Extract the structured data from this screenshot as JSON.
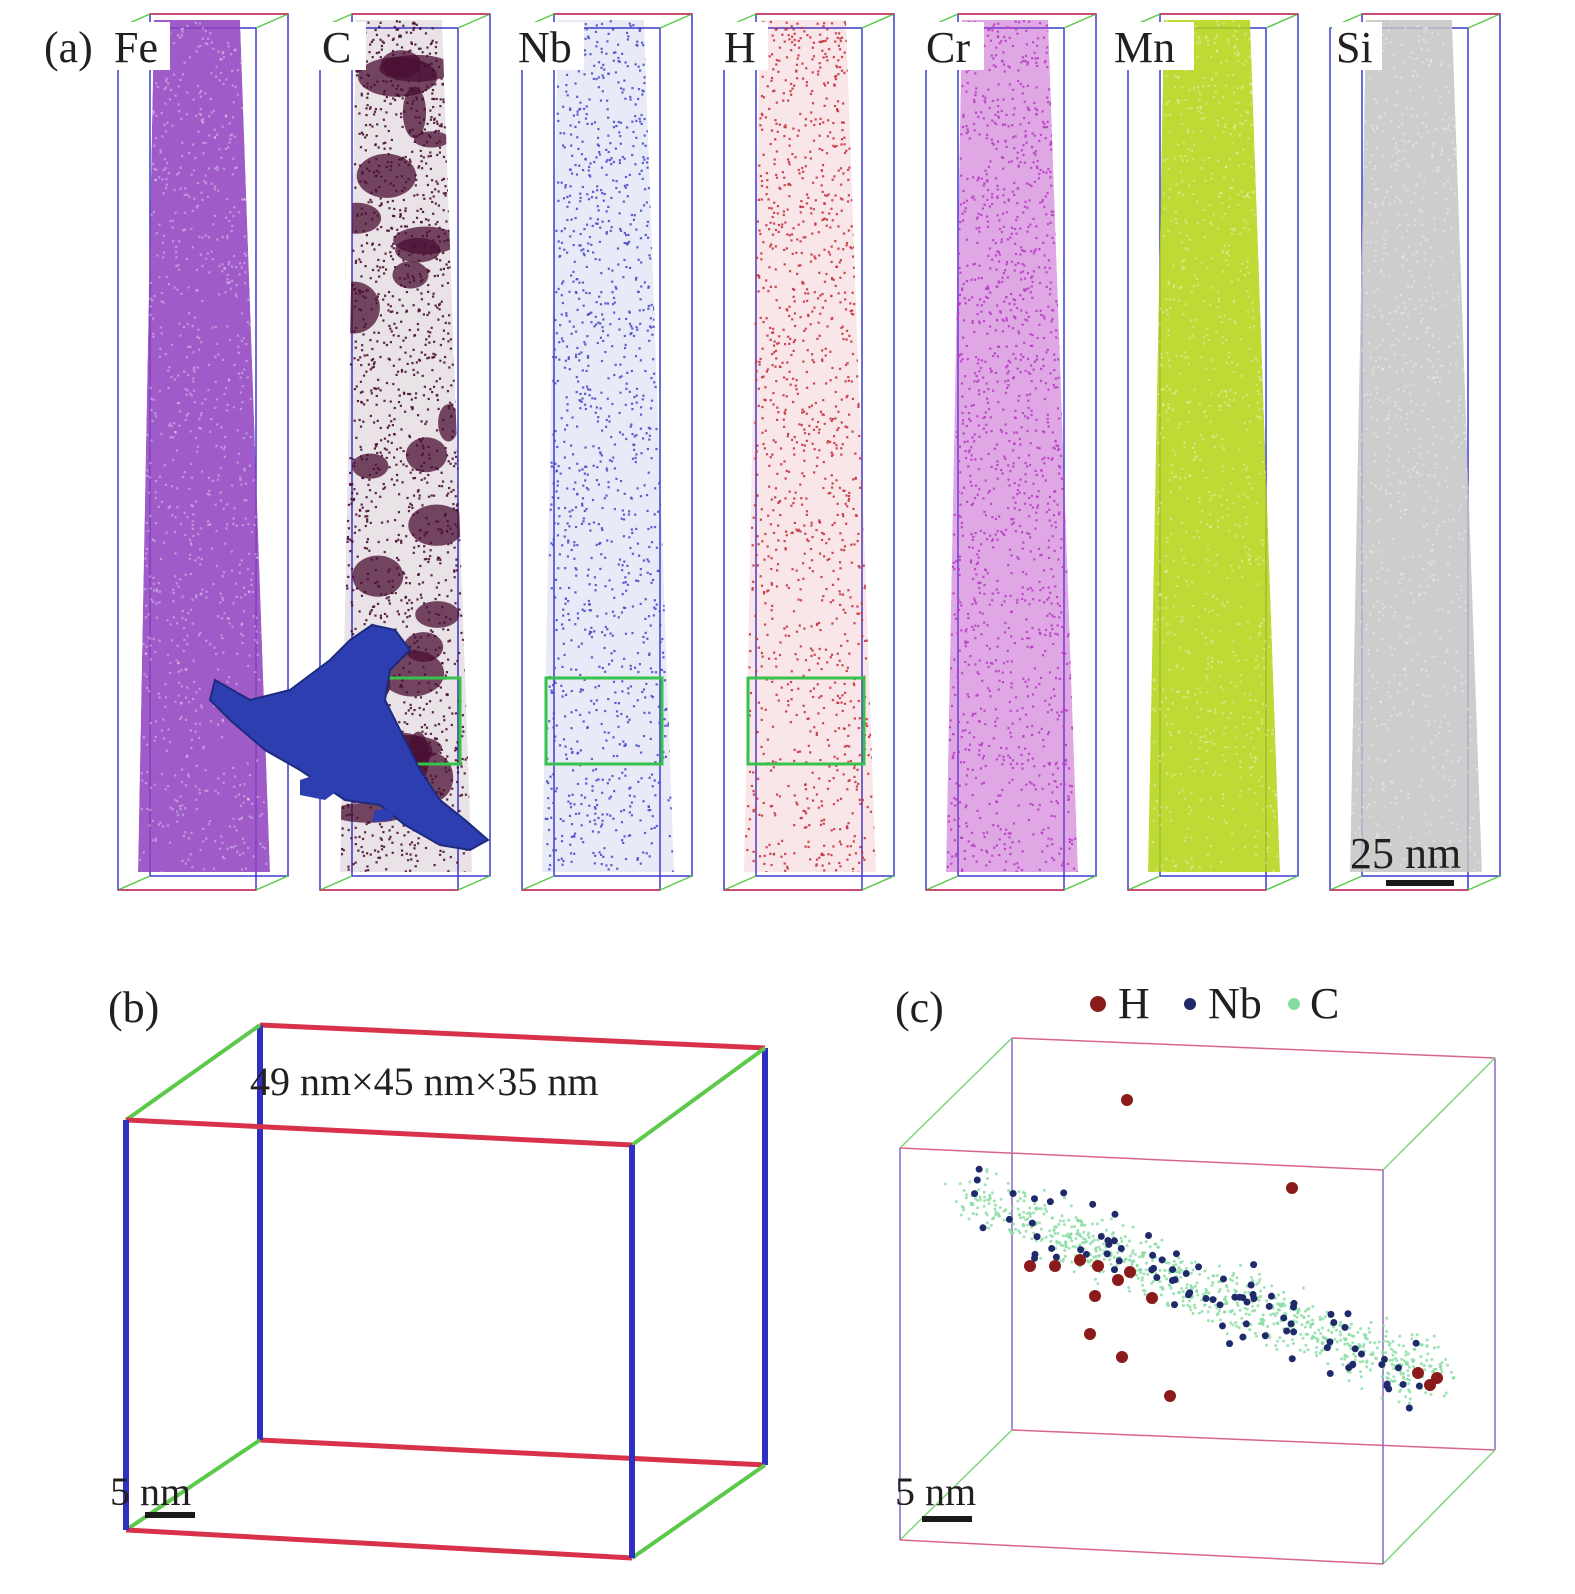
{
  "figure": {
    "panel_a": {
      "label": "(a)",
      "scale_bar": "25 nm",
      "columns": [
        {
          "element": "Fe",
          "color": "#8e3fbe",
          "pattern": "dense",
          "highlight": false
        },
        {
          "element": "C",
          "color": "#4a0f33",
          "pattern": "clusters",
          "highlight": true
        },
        {
          "element": "Nb",
          "color": "#4b4fc7",
          "pattern": "sparse",
          "highlight": true
        },
        {
          "element": "H",
          "color": "#c8333f",
          "pattern": "sparse",
          "highlight": true
        },
        {
          "element": "Cr",
          "color": "#b93ec5",
          "pattern": "medium",
          "highlight": false
        },
        {
          "element": "Mn",
          "color": "#b3d312",
          "pattern": "dense",
          "highlight": false
        },
        {
          "element": "Si",
          "color": "#c4c4c4",
          "pattern": "dense",
          "highlight": false
        }
      ],
      "highlight_box_color": "#37c34b"
    },
    "panel_b": {
      "label": "(b)",
      "dimensions": "49 nm×45 nm×35 nm",
      "scale_bar": "5 nm",
      "isosurface_color": "#2d3fb0"
    },
    "panel_c": {
      "label": "(c)",
      "scale_bar": "5 nm",
      "legend": [
        {
          "name": "H",
          "color": "#8b1a1a"
        },
        {
          "name": "Nb",
          "color": "#1f2a6b"
        },
        {
          "name": "C",
          "color": "#86dca0"
        }
      ]
    },
    "box_edge_colors": {
      "red": "#d8324a",
      "blue": "#2f2fc0",
      "green": "#5cc94a"
    }
  }
}
